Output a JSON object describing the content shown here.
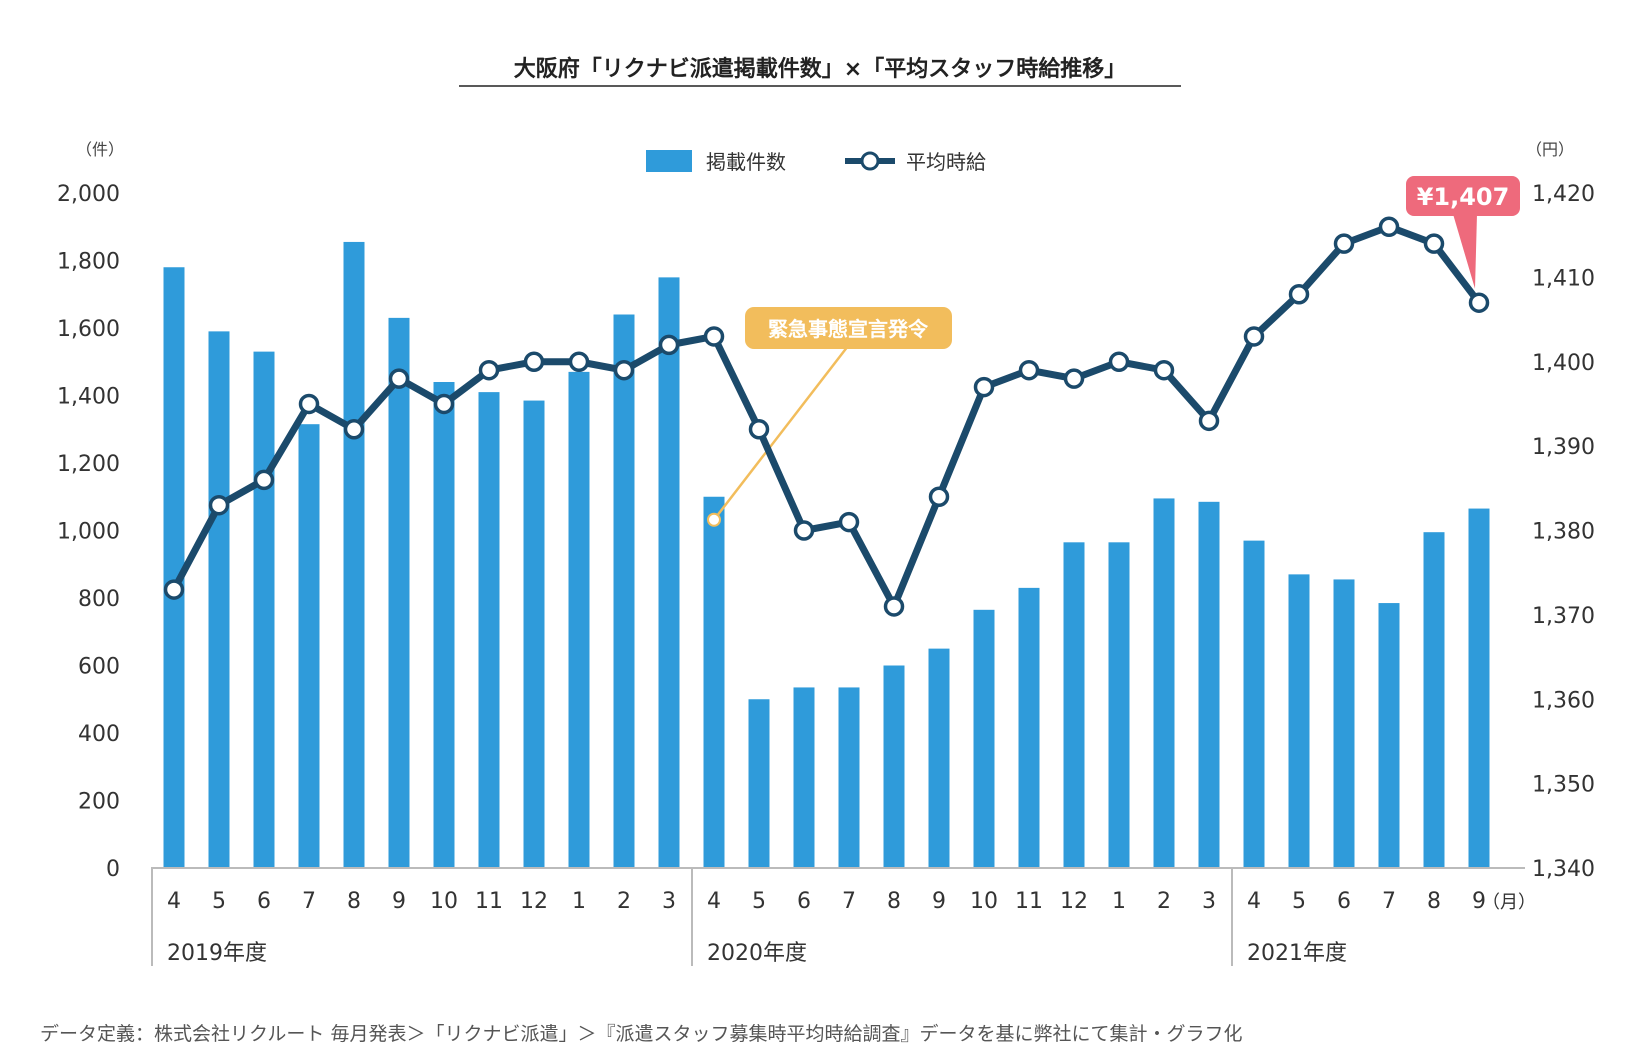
{
  "chart_data": {
    "type": "bar+line",
    "title": "大阪府「リクナビ派遣掲載件数」×「平均スタッフ時給推移」",
    "left_axis": {
      "unit_label": "（件）",
      "ylim": [
        0,
        2000
      ],
      "ticks": [
        "0",
        "200",
        "400",
        "600",
        "800",
        "1,000",
        "1,200",
        "1,400",
        "1,600",
        "1,800",
        "2,000"
      ]
    },
    "right_axis": {
      "unit_label": "（円）",
      "ylim": [
        1340,
        1420
      ],
      "ticks": [
        "1,340",
        "1,350",
        "1,360",
        "1,370",
        "1,380",
        "1,390",
        "1,400",
        "1,410",
        "1,420"
      ]
    },
    "x_unit_label": "（月）",
    "categories": [
      "4",
      "5",
      "6",
      "7",
      "8",
      "9",
      "10",
      "11",
      "12",
      "1",
      "2",
      "3",
      "4",
      "5",
      "6",
      "7",
      "8",
      "9",
      "10",
      "11",
      "12",
      "1",
      "2",
      "3",
      "4",
      "5",
      "6",
      "7",
      "8",
      "9"
    ],
    "fiscal_years": [
      {
        "label": "2019年度",
        "start_index": 0
      },
      {
        "label": "2020年度",
        "start_index": 12
      },
      {
        "label": "2021年度",
        "start_index": 24
      }
    ],
    "series": [
      {
        "name": "掲載件数",
        "type": "bar",
        "axis": "left",
        "color": "#2f9bda",
        "values": [
          1780,
          1590,
          1530,
          1315,
          1855,
          1630,
          1440,
          1410,
          1385,
          1470,
          1640,
          1750,
          1100,
          500,
          535,
          535,
          600,
          650,
          765,
          830,
          965,
          965,
          1095,
          1085,
          970,
          870,
          855,
          785,
          995,
          1065
        ]
      },
      {
        "name": "平均時給",
        "type": "line",
        "axis": "right",
        "color": "#1b4a6b",
        "values": [
          1373,
          1383,
          1386,
          1395,
          1392,
          1398,
          1395,
          1399,
          1400,
          1400,
          1399,
          1402,
          1403,
          1392,
          1380,
          1381,
          1371,
          1384,
          1397,
          1399,
          1398,
          1400,
          1399,
          1393,
          1403,
          1408,
          1414,
          1416,
          1414,
          1407
        ]
      }
    ],
    "annotations": [
      {
        "text": "緊急事態宣言発令",
        "index": 12,
        "color": "#f2bd5c"
      },
      {
        "text": "¥1,407",
        "index": 29,
        "color": "#ee6a7c"
      }
    ],
    "legend_position": "top-center",
    "grid": false
  },
  "footnote": "データ定義：株式会社リクルート 毎月発表＞「リクナビ派遣」＞『派遣スタッフ募集時平均時給調査』データを基に弊社にて集計・グラフ化"
}
